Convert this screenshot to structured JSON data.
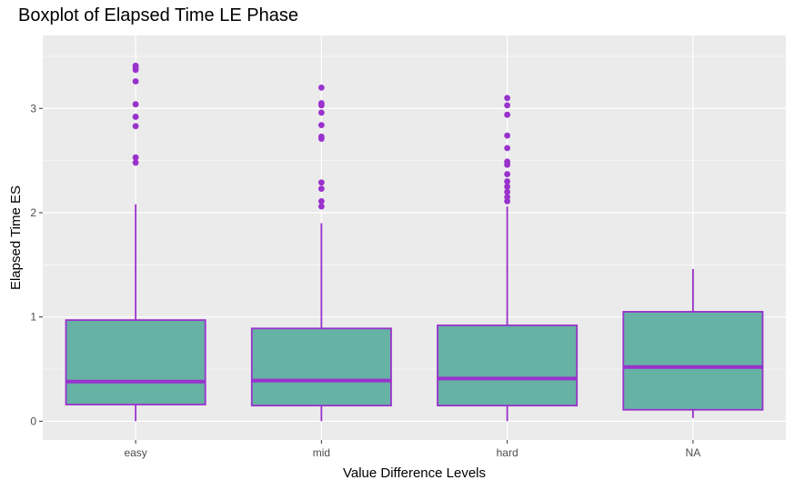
{
  "chart_data": {
    "type": "boxplot",
    "title": "Boxplot of Elapsed Time LE Phase",
    "xlabel": "Value Difference Levels",
    "ylabel": "Elapsed Time ES",
    "ylim": [
      -0.18,
      3.7
    ],
    "yticks": [
      0,
      1,
      2,
      3
    ],
    "grid": true,
    "colors": {
      "panel": "#ebebeb",
      "grid": "#ffffff",
      "box_fill": "#66b2a4",
      "box_line": "#9932cc"
    },
    "categories": [
      "easy",
      "mid",
      "hard",
      "NA"
    ],
    "boxes": [
      {
        "category": "easy",
        "whisker_low": 0.0,
        "q1": 0.16,
        "median": 0.38,
        "q3": 0.97,
        "whisker_high": 2.08,
        "outliers": [
          2.48,
          2.53,
          2.83,
          2.92,
          3.04,
          3.26,
          3.37,
          3.39,
          3.41
        ]
      },
      {
        "category": "mid",
        "whisker_low": 0.0,
        "q1": 0.15,
        "median": 0.39,
        "q3": 0.89,
        "whisker_high": 1.9,
        "outliers": [
          2.06,
          2.11,
          2.23,
          2.29,
          2.71,
          2.73,
          2.84,
          2.96,
          3.03,
          3.05,
          3.2
        ]
      },
      {
        "category": "hard",
        "whisker_low": 0.0,
        "q1": 0.15,
        "median": 0.41,
        "q3": 0.92,
        "whisker_high": 2.06,
        "outliers": [
          2.11,
          2.15,
          2.2,
          2.25,
          2.3,
          2.37,
          2.46,
          2.49,
          2.62,
          2.74,
          2.94,
          3.03,
          3.1
        ]
      },
      {
        "category": "NA",
        "whisker_low": 0.03,
        "q1": 0.11,
        "median": 0.52,
        "q3": 1.05,
        "whisker_high": 1.46,
        "outliers": []
      }
    ]
  }
}
